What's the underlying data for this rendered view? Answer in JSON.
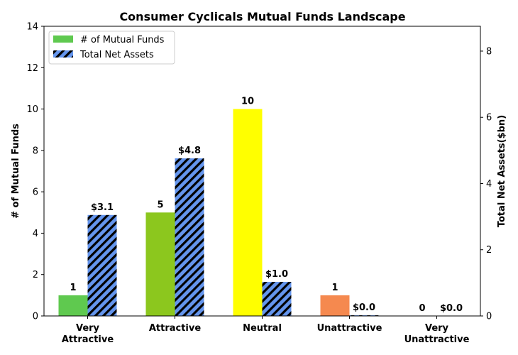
{
  "chart_data": {
    "type": "bar",
    "title": "Consumer Cyclicals Mutual Funds Landscape",
    "categories": [
      [
        "Very",
        "Attractive"
      ],
      [
        "Attractive"
      ],
      [
        "Neutral"
      ],
      [
        "Unattractive"
      ],
      [
        "Very",
        "Unattractive"
      ]
    ],
    "ylabel_left": "# of Mutual Funds",
    "ylabel_right": "Total Net Assets($bn)",
    "ylim_left": [
      0,
      14
    ],
    "ylim_right": [
      0,
      8.75
    ],
    "yticks_left": [
      0,
      2,
      4,
      6,
      8,
      10,
      12,
      14
    ],
    "yticks_right": [
      0,
      2,
      4,
      6,
      8
    ],
    "grid": false,
    "legend_placement": "top-left",
    "series": [
      {
        "name": "# of Mutual Funds",
        "axis": "left",
        "values": [
          1,
          5,
          10,
          1,
          0
        ],
        "labels": [
          "1",
          "5",
          "10",
          "1",
          "0"
        ],
        "colors": [
          "#5fc94f",
          "#8cc71e",
          "#ffff00",
          "#f5894f",
          "#e8402a"
        ],
        "legend_color": "#5fc94f"
      },
      {
        "name": "Total Net Assets",
        "axis": "right",
        "values": [
          3.05,
          4.76,
          1.03,
          0.02,
          0.0
        ],
        "labels": [
          "$3.1",
          "$4.8",
          "$1.0",
          "$0.0",
          "$0.0"
        ],
        "color": "#6495ed",
        "hatch": "diagonal"
      }
    ]
  }
}
